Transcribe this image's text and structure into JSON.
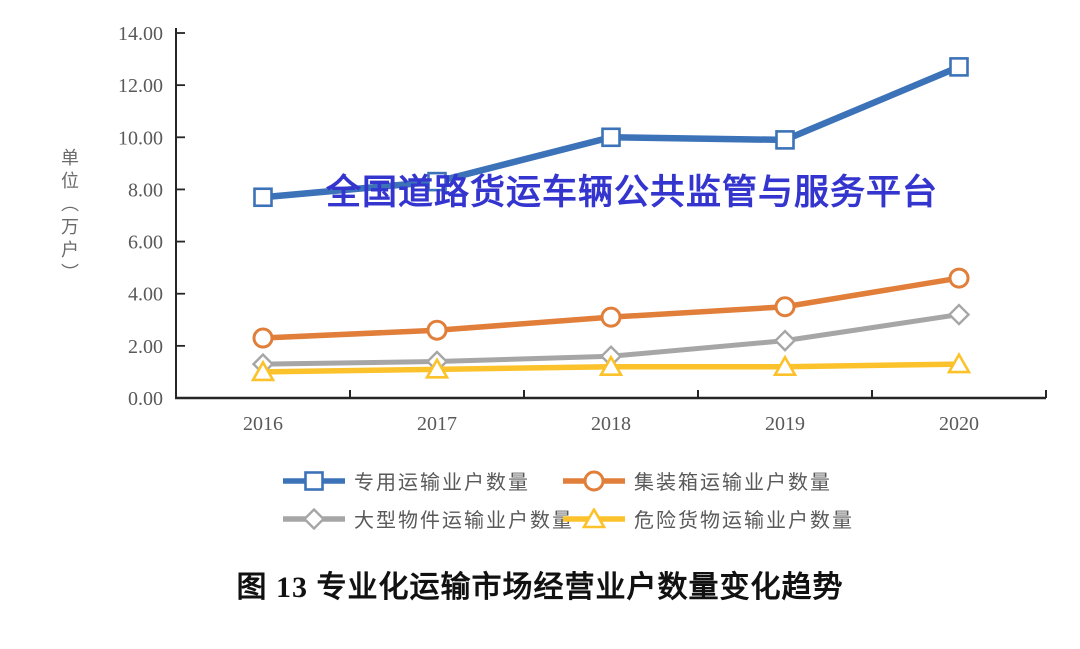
{
  "watermark": {
    "text": "全国道路货运车辆公共监管与服务平台",
    "color": "#3434CF"
  },
  "caption": {
    "text": "图 13 专业化运输市场经营业户数量变化趋势"
  },
  "chart_data": {
    "type": "line",
    "categories": [
      "2016",
      "2017",
      "2018",
      "2019",
      "2020"
    ],
    "ylabel": "单位（万户）",
    "ylim": [
      0,
      14
    ],
    "y_tick_step": 2,
    "y_tick_labels": [
      "0.00",
      "2.00",
      "4.00",
      "6.00",
      "8.00",
      "10.00",
      "12.00",
      "14.00"
    ],
    "grid": false,
    "legend_position": "bottom",
    "axis_color": "#262626",
    "tick_label_color": "#595959",
    "series": [
      {
        "name": "专用运输业户数量",
        "marker": "square",
        "color": "#3C72B8",
        "line_width": 6.5,
        "values": [
          7.7,
          8.3,
          10.0,
          9.9,
          12.7
        ]
      },
      {
        "name": "集装箱运输业户数量",
        "marker": "circle",
        "color": "#E07E3A",
        "line_width": 5.5,
        "values": [
          2.3,
          2.6,
          3.1,
          3.5,
          4.6
        ]
      },
      {
        "name": "大型物件运输业户数量",
        "marker": "diamond",
        "color": "#A6A6A6",
        "line_width": 5.0,
        "values": [
          1.3,
          1.4,
          1.6,
          2.2,
          3.2
        ]
      },
      {
        "name": "危险货物运输业户数量",
        "marker": "triangle",
        "color": "#FCC22B",
        "line_width": 5.5,
        "values": [
          1.0,
          1.1,
          1.2,
          1.2,
          1.3
        ]
      }
    ]
  }
}
